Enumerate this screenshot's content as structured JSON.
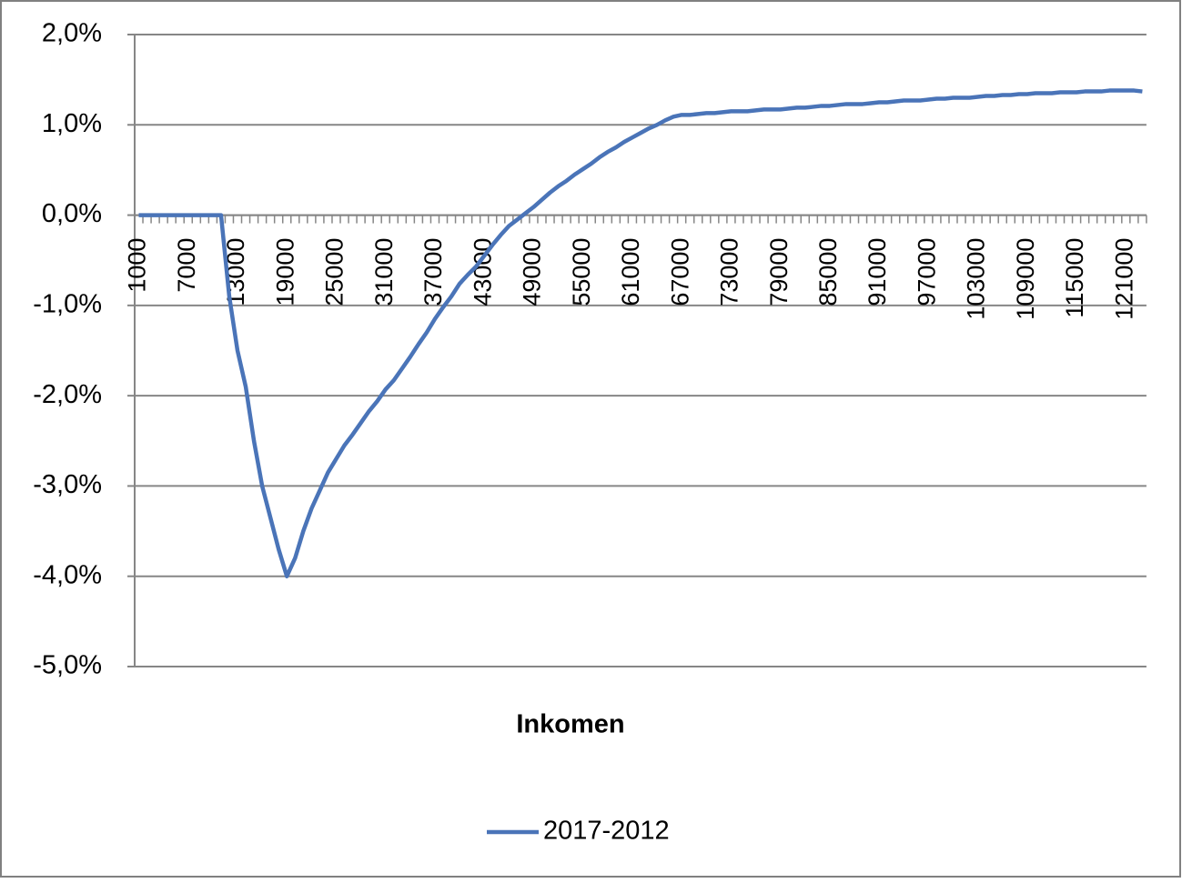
{
  "chart_data": {
    "type": "line",
    "x_label": "Inkomen",
    "categories": [
      "1000",
      null,
      null,
      null,
      null,
      null,
      "7000",
      null,
      null,
      null,
      null,
      null,
      "13000",
      null,
      null,
      null,
      null,
      null,
      "19000",
      null,
      null,
      null,
      null,
      null,
      "25000",
      null,
      null,
      null,
      null,
      null,
      "31000",
      null,
      null,
      null,
      null,
      null,
      "37000",
      null,
      null,
      null,
      null,
      null,
      "43000",
      null,
      null,
      null,
      null,
      null,
      "49000",
      null,
      null,
      null,
      null,
      null,
      "55000",
      null,
      null,
      null,
      null,
      null,
      "61000",
      null,
      null,
      null,
      null,
      null,
      "67000",
      null,
      null,
      null,
      null,
      null,
      "73000",
      null,
      null,
      null,
      null,
      null,
      "79000",
      null,
      null,
      null,
      null,
      null,
      "85000",
      null,
      null,
      null,
      null,
      null,
      "91000",
      null,
      null,
      null,
      null,
      null,
      "97000",
      null,
      null,
      null,
      null,
      null,
      "103000",
      null,
      null,
      null,
      null,
      null,
      "109000",
      null,
      null,
      null,
      null,
      null,
      "115000",
      null,
      null,
      null,
      null,
      null,
      "121000",
      null,
      null
    ],
    "series": [
      {
        "name": "2017-2012",
        "color": "#4a74b8",
        "values": [
          0,
          0,
          0,
          0,
          0,
          0,
          0,
          0,
          0,
          0,
          0,
          -0.9,
          -1.5,
          -1.9,
          -2.5,
          -3.0,
          -3.35,
          -3.7,
          -4.0,
          -3.8,
          -3.5,
          -3.25,
          -3.05,
          -2.85,
          -2.7,
          -2.55,
          -2.43,
          -2.3,
          -2.17,
          -2.06,
          -1.93,
          -1.83,
          -1.7,
          -1.57,
          -1.43,
          -1.3,
          -1.15,
          -1.02,
          -0.9,
          -0.76,
          -0.66,
          -0.57,
          -0.45,
          -0.33,
          -0.22,
          -0.12,
          -0.05,
          0.02,
          0.09,
          0.17,
          0.25,
          0.32,
          0.38,
          0.45,
          0.51,
          0.57,
          0.64,
          0.7,
          0.75,
          0.81,
          0.86,
          0.91,
          0.96,
          1.0,
          1.05,
          1.09,
          1.11,
          1.11,
          1.12,
          1.13,
          1.13,
          1.14,
          1.15,
          1.15,
          1.15,
          1.16,
          1.17,
          1.17,
          1.17,
          1.18,
          1.19,
          1.19,
          1.2,
          1.21,
          1.21,
          1.22,
          1.23,
          1.23,
          1.23,
          1.24,
          1.25,
          1.25,
          1.26,
          1.27,
          1.27,
          1.27,
          1.28,
          1.29,
          1.29,
          1.3,
          1.3,
          1.3,
          1.31,
          1.32,
          1.32,
          1.33,
          1.33,
          1.34,
          1.34,
          1.35,
          1.35,
          1.35,
          1.36,
          1.36,
          1.36,
          1.37,
          1.37,
          1.37,
          1.38,
          1.38,
          1.38,
          1.38,
          1.37
        ]
      }
    ],
    "ylim": [
      -5,
      2
    ],
    "yticks": [
      {
        "value": -5,
        "label": "-5,0%"
      },
      {
        "value": -4,
        "label": "-4,0%"
      },
      {
        "value": -3,
        "label": "-3,0%"
      },
      {
        "value": -2,
        "label": "-2,0%"
      },
      {
        "value": -1,
        "label": "-1,0%"
      },
      {
        "value": 0,
        "label": "0,0%"
      },
      {
        "value": 1,
        "label": "1,0%"
      },
      {
        "value": 2,
        "label": "2,0%"
      }
    ],
    "grid": true,
    "legend": "bottom"
  }
}
